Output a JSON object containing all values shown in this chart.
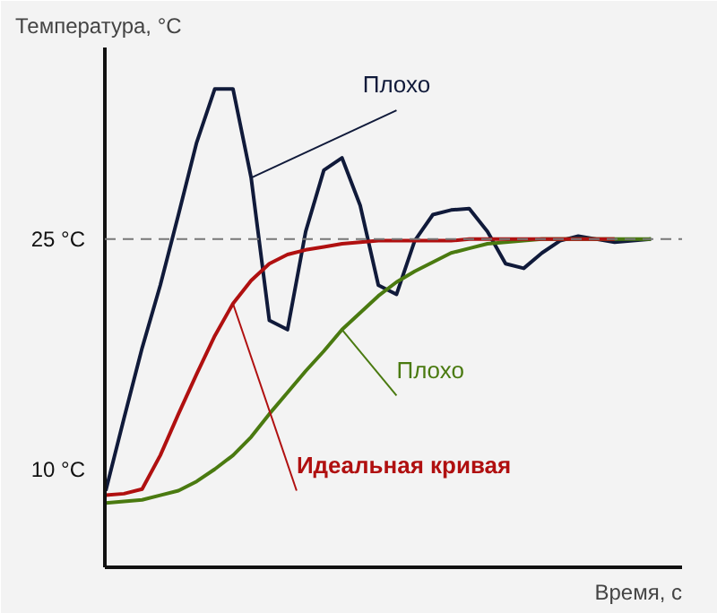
{
  "chart_data": {
    "type": "line",
    "xlabel": "Время, с",
    "ylabel": "Температура, °C",
    "categories": [
      null,
      null,
      null,
      null,
      null,
      null,
      null,
      null,
      null,
      null,
      null,
      null,
      null,
      null,
      null,
      null,
      null,
      null,
      null,
      null,
      null,
      null,
      null,
      null,
      null,
      null,
      null,
      null,
      null,
      null,
      null
    ],
    "series": [
      {
        "name": "Плохо",
        "color": "#101a3a",
        "values": [
          8.6,
          13.3,
          17.9,
          22.0,
          26.6,
          31.3,
          34.8,
          34.8,
          29.0,
          19.7,
          19.1,
          25.5,
          29.5,
          30.3,
          27.2,
          22.0,
          21.4,
          24.9,
          26.6,
          26.9,
          27.0,
          25.5,
          23.4,
          23.1,
          24.1,
          24.9,
          25.2,
          25.0,
          24.8,
          24.9,
          25.0
        ]
      },
      {
        "name": "Плохо",
        "color": "#4a7a10",
        "values": [
          7.8,
          7.9,
          8.0,
          8.3,
          8.6,
          9.2,
          10.0,
          10.9,
          12.1,
          13.6,
          15.0,
          16.4,
          17.7,
          19.1,
          20.2,
          21.3,
          22.2,
          22.9,
          23.5,
          24.1,
          24.4,
          24.7,
          24.8,
          24.9,
          25.0,
          25.0,
          25.0,
          25.0,
          25.0,
          25.0,
          25.0
        ]
      },
      {
        "name": "Идеальная кривая",
        "color": "#b01010",
        "values": [
          8.3,
          8.4,
          8.7,
          10.9,
          13.6,
          16.2,
          18.7,
          20.8,
          22.3,
          23.4,
          24.0,
          24.3,
          24.5,
          24.7,
          24.8,
          24.9,
          24.9,
          24.9,
          24.9,
          24.9,
          25.0,
          25.0,
          25.0,
          25.0,
          25.0,
          25.0,
          25.0,
          25.0,
          25.0,
          null,
          null
        ]
      }
    ],
    "ylim": [
      3.6,
      37.5
    ],
    "yticks": [
      {
        "value": 10,
        "label": "10 °C"
      },
      {
        "value": 25,
        "label": "25 °C"
      }
    ],
    "ref_lines": [
      {
        "axis": "y",
        "value": 25,
        "label": null,
        "color": "#777777",
        "line_style": "dashed"
      }
    ],
    "grid": false,
    "tick_labels": "y",
    "line_style": "solid",
    "marker": "none"
  }
}
